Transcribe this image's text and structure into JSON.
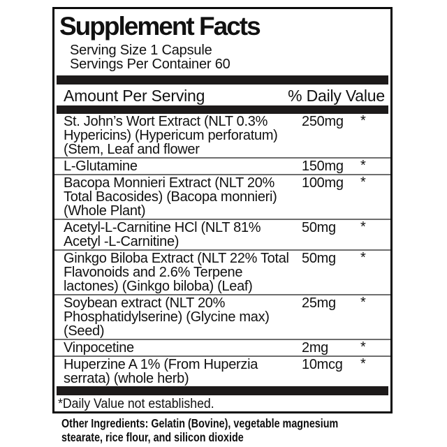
{
  "title": "Supplement Facts",
  "serving": {
    "size": "Serving Size 1 Capsule",
    "per_container": "Servings Per Container 60"
  },
  "columns": {
    "amount_header": "Amount Per Serving",
    "daily_value_header": "% Daily Value"
  },
  "rows": [
    {
      "name_lines": [
        "St. John’s Wort Extract (NLT 0.3%",
        "Hypericins) (Hypericum perforatum)",
        "(Stem, Leaf and flower"
      ],
      "amount": "250mg",
      "dv": "*"
    },
    {
      "name_lines": [
        "L-Glutamine"
      ],
      "amount": "150mg",
      "dv": "*"
    },
    {
      "name_lines": [
        "Bacopa Monnieri Extract (NLT 20%",
        "Total Bacosides) (Bacopa monnieri)",
        "(Whole Plant)"
      ],
      "amount": "100mg",
      "dv": "*"
    },
    {
      "name_lines": [
        "Acetyl-L-Carnitine HCl (NLT 81%",
        "Acetyl -L-Carnitine)"
      ],
      "amount": "50mg",
      "dv": "*"
    },
    {
      "name_lines": [
        "Ginkgo Biloba Extract (NLT 22% Total",
        "Flavonoids and 2.6% Terpene",
        "lactones) (Ginkgo biloba) (Leaf)"
      ],
      "amount": "50mg",
      "dv": "*"
    },
    {
      "name_lines": [
        "Soybean extract (NLT 20%",
        "Phosphatidylserine) (Glycine max)",
        "(Seed)"
      ],
      "amount": "25mg",
      "dv": "*"
    },
    {
      "name_lines": [
        "Vinpocetine"
      ],
      "amount": "2mg",
      "dv": "*"
    },
    {
      "name_lines": [
        "Huperzine A 1% (From Huperzia",
        "serrata) (whole herb)"
      ],
      "amount": "10mcg",
      "dv": "*"
    }
  ],
  "footnote": "*Daily Value not established.",
  "footer": {
    "other_ingredients": "Other Ingredients: Gelatin (Bovine), vegetable magnesium\nstearate, rice flour, and silicon dioxide"
  },
  "colors": {
    "ink": "#111111",
    "bar": "#1d1a1a",
    "hairline": "#6e6e6e",
    "background": "#ffffff"
  }
}
